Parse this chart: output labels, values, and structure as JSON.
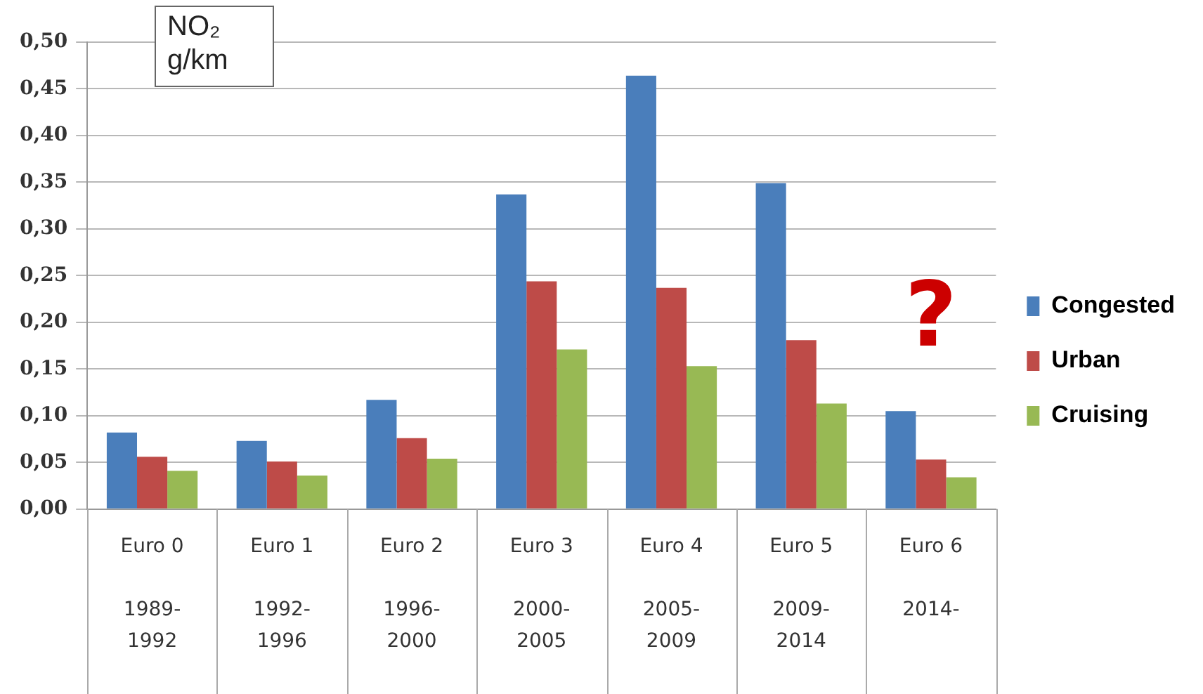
{
  "chart_data": {
    "type": "bar",
    "ylabel": "NO₂ g/km",
    "categories": [
      "Euro 0\n1989-\n1992",
      "Euro 1\n1992-\n1996",
      "Euro 2\n1996-\n2000",
      "Euro 3\n2000-\n2005",
      "Euro 4\n2005-\n2009",
      "Euro 5\n2009-\n2014",
      "Euro 6\n2014-"
    ],
    "series": [
      {
        "name": "Congested",
        "color": "#4a7ebb",
        "values": [
          0.082,
          0.073,
          0.117,
          0.337,
          0.464,
          0.349,
          0.105
        ]
      },
      {
        "name": "Urban",
        "color": "#be4b48",
        "values": [
          0.056,
          0.051,
          0.076,
          0.244,
          0.237,
          0.181,
          0.053
        ]
      },
      {
        "name": "Cruising",
        "color": "#98b954",
        "values": [
          0.041,
          0.036,
          0.054,
          0.171,
          0.153,
          0.113,
          0.034
        ]
      }
    ],
    "ylim": [
      0,
      0.5
    ],
    "yticks": [
      {
        "value": 0,
        "label": "0,00"
      },
      {
        "value": 0.05,
        "label": "0,05"
      },
      {
        "value": 0.1,
        "label": "0,10"
      },
      {
        "value": 0.15,
        "label": "0,15"
      },
      {
        "value": 0.2,
        "label": "0,20"
      },
      {
        "value": 0.25,
        "label": "0,25"
      },
      {
        "value": 0.3,
        "label": "0,30"
      },
      {
        "value": 0.35,
        "label": "0,35"
      },
      {
        "value": 0.4,
        "label": "0,40"
      },
      {
        "value": 0.45,
        "label": "0,45"
      },
      {
        "value": 0.5,
        "label": "0,50"
      }
    ],
    "annotations": [
      "?"
    ],
    "grid": "y",
    "legend": "right"
  }
}
